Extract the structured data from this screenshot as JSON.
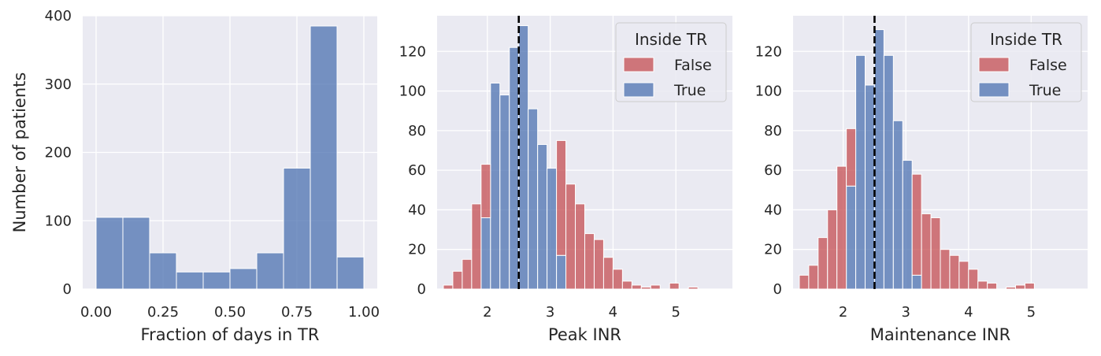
{
  "colors": {
    "axes_bg": "#EAEAF2",
    "grid": "#FFFFFF",
    "blue": "#4C72B0",
    "red": "#C44E52",
    "text": "#262626",
    "refline": "#000000"
  },
  "chart_data": [
    {
      "type": "histogram",
      "xlabel": "Fraction of days in TR",
      "ylabel": "Number of patients",
      "xlim": [
        -0.05,
        1.05
      ],
      "ylim": [
        0,
        400
      ],
      "xticks": [
        0.0,
        0.25,
        0.5,
        0.75,
        1.0
      ],
      "xtick_labels": [
        "0.00",
        "0.25",
        "0.50",
        "0.75",
        "1.00"
      ],
      "yticks": [
        0,
        100,
        200,
        300,
        400
      ],
      "ytick_labels": [
        "0",
        "100",
        "200",
        "300",
        "400"
      ],
      "grid": true,
      "bin_start": 0.0,
      "bin_width": 0.1,
      "series": [
        {
          "color": "#4C72B0",
          "values": [
            105,
            105,
            53,
            25,
            25,
            30,
            53,
            177,
            385,
            47
          ]
        }
      ]
    },
    {
      "type": "histogram",
      "stacked": true,
      "xlabel": "Peak INR",
      "ylabel": "",
      "xlim": [
        1.2,
        5.9
      ],
      "ylim": [
        0,
        138
      ],
      "xticks": [
        2,
        3,
        4,
        5
      ],
      "xtick_labels": [
        "2",
        "3",
        "4",
        "5"
      ],
      "yticks": [
        0,
        20,
        40,
        60,
        80,
        100,
        120
      ],
      "ytick_labels": [
        "0",
        "20",
        "40",
        "60",
        "80",
        "100",
        "120"
      ],
      "grid": true,
      "reference_line": {
        "x": 2.5,
        "style": "dashed"
      },
      "legend": {
        "title": "Inside TR",
        "placement": "top-right"
      },
      "bin_start": 1.3,
      "bin_width": 0.15,
      "series": [
        {
          "name": "True",
          "color": "#4C72B0",
          "values": [
            0,
            0,
            0,
            0,
            36,
            104,
            98,
            122,
            133,
            91,
            73,
            61,
            17,
            0,
            0,
            0,
            0,
            0,
            0,
            0,
            0,
            0,
            0,
            0,
            0,
            0,
            0,
            0
          ]
        },
        {
          "name": "False",
          "color": "#C44E52",
          "values": [
            2,
            9,
            15,
            43,
            27,
            0,
            0,
            0,
            0,
            0,
            0,
            0,
            58,
            53,
            43,
            28,
            25,
            16,
            10,
            4,
            2,
            1,
            2,
            0,
            3,
            0,
            1,
            0
          ]
        }
      ]
    },
    {
      "type": "histogram",
      "stacked": true,
      "xlabel": "Maintenance INR",
      "ylabel": "",
      "xlim": [
        1.2,
        5.9
      ],
      "ylim": [
        0,
        138
      ],
      "xticks": [
        2,
        3,
        4,
        5
      ],
      "xtick_labels": [
        "2",
        "3",
        "4",
        "5"
      ],
      "yticks": [
        0,
        20,
        40,
        60,
        80,
        100,
        120
      ],
      "ytick_labels": [
        "0",
        "20",
        "40",
        "60",
        "80",
        "100",
        "120"
      ],
      "grid": true,
      "reference_line": {
        "x": 2.5,
        "style": "dashed"
      },
      "legend": {
        "title": "Inside TR",
        "placement": "top-right"
      },
      "bin_start": 1.3,
      "bin_width": 0.15,
      "series": [
        {
          "name": "True",
          "color": "#4C72B0",
          "values": [
            0,
            0,
            0,
            0,
            0,
            52,
            118,
            103,
            131,
            118,
            85,
            65,
            7,
            0,
            0,
            0,
            0,
            0,
            0,
            0,
            0,
            0,
            0,
            0,
            0,
            0,
            0,
            0
          ]
        },
        {
          "name": "False",
          "color": "#C44E52",
          "values": [
            7,
            12,
            26,
            40,
            62,
            29,
            0,
            0,
            0,
            0,
            0,
            0,
            51,
            38,
            36,
            20,
            17,
            14,
            10,
            4,
            3,
            0,
            1,
            2,
            3,
            0,
            0,
            0
          ]
        }
      ]
    }
  ]
}
